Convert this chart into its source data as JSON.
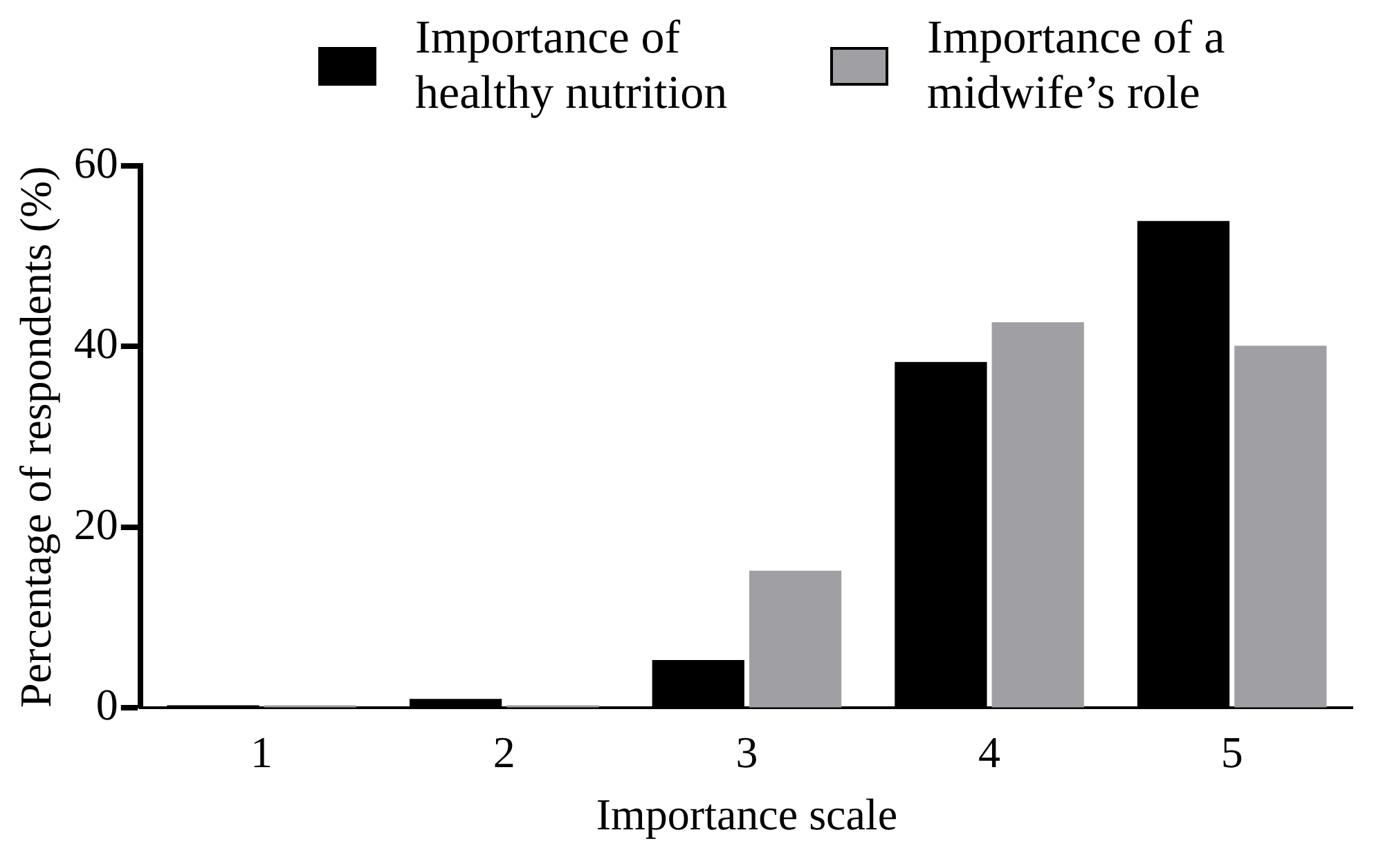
{
  "chart_data": {
    "type": "bar",
    "xlabel": "Importance scale",
    "ylabel": "Percentage of respondents (%)",
    "categories": [
      "1",
      "2",
      "3",
      "4",
      "5"
    ],
    "series": [
      {
        "name": "Importance of healthy nutrition",
        "color": "#000000",
        "values": [
          0.3,
          1.0,
          5.3,
          38.3,
          53.9
        ]
      },
      {
        "name": "Importance of a midwife’s role",
        "color": "#a09fa4",
        "values": [
          0.3,
          0.3,
          15.2,
          42.7,
          40.1
        ]
      }
    ],
    "ylim": [
      0,
      60
    ],
    "yticks": [
      0,
      20,
      40,
      60
    ],
    "grid": false,
    "legend": "top right"
  }
}
